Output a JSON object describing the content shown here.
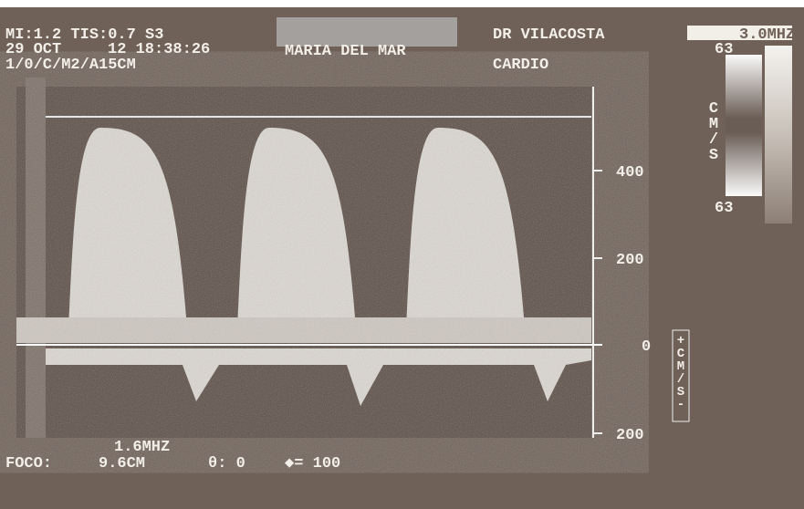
{
  "header": {
    "line1": "MI:1.2 TIS:0.7 S3",
    "date": "29 OCT",
    "time": "12 18:38:26",
    "mode": "1/0/C/M2/A15CM",
    "patient": "MARIA DEL MAR",
    "doctor": "DR VILACOSTA",
    "study": "CARDIO",
    "frequency": "3.0MHZ"
  },
  "colorbar": {
    "top": "63",
    "unit": "CM/S",
    "bottom": "63"
  },
  "scale": {
    "labels": [
      "400",
      "200",
      "0",
      "200"
    ],
    "unit": "+CM/S-"
  },
  "footer": {
    "frequency": "1.6MHZ",
    "focus_label": "FOCO:",
    "focus": "9.6CM",
    "angle": "θ: 0",
    "rate": "◆= 100"
  }
}
